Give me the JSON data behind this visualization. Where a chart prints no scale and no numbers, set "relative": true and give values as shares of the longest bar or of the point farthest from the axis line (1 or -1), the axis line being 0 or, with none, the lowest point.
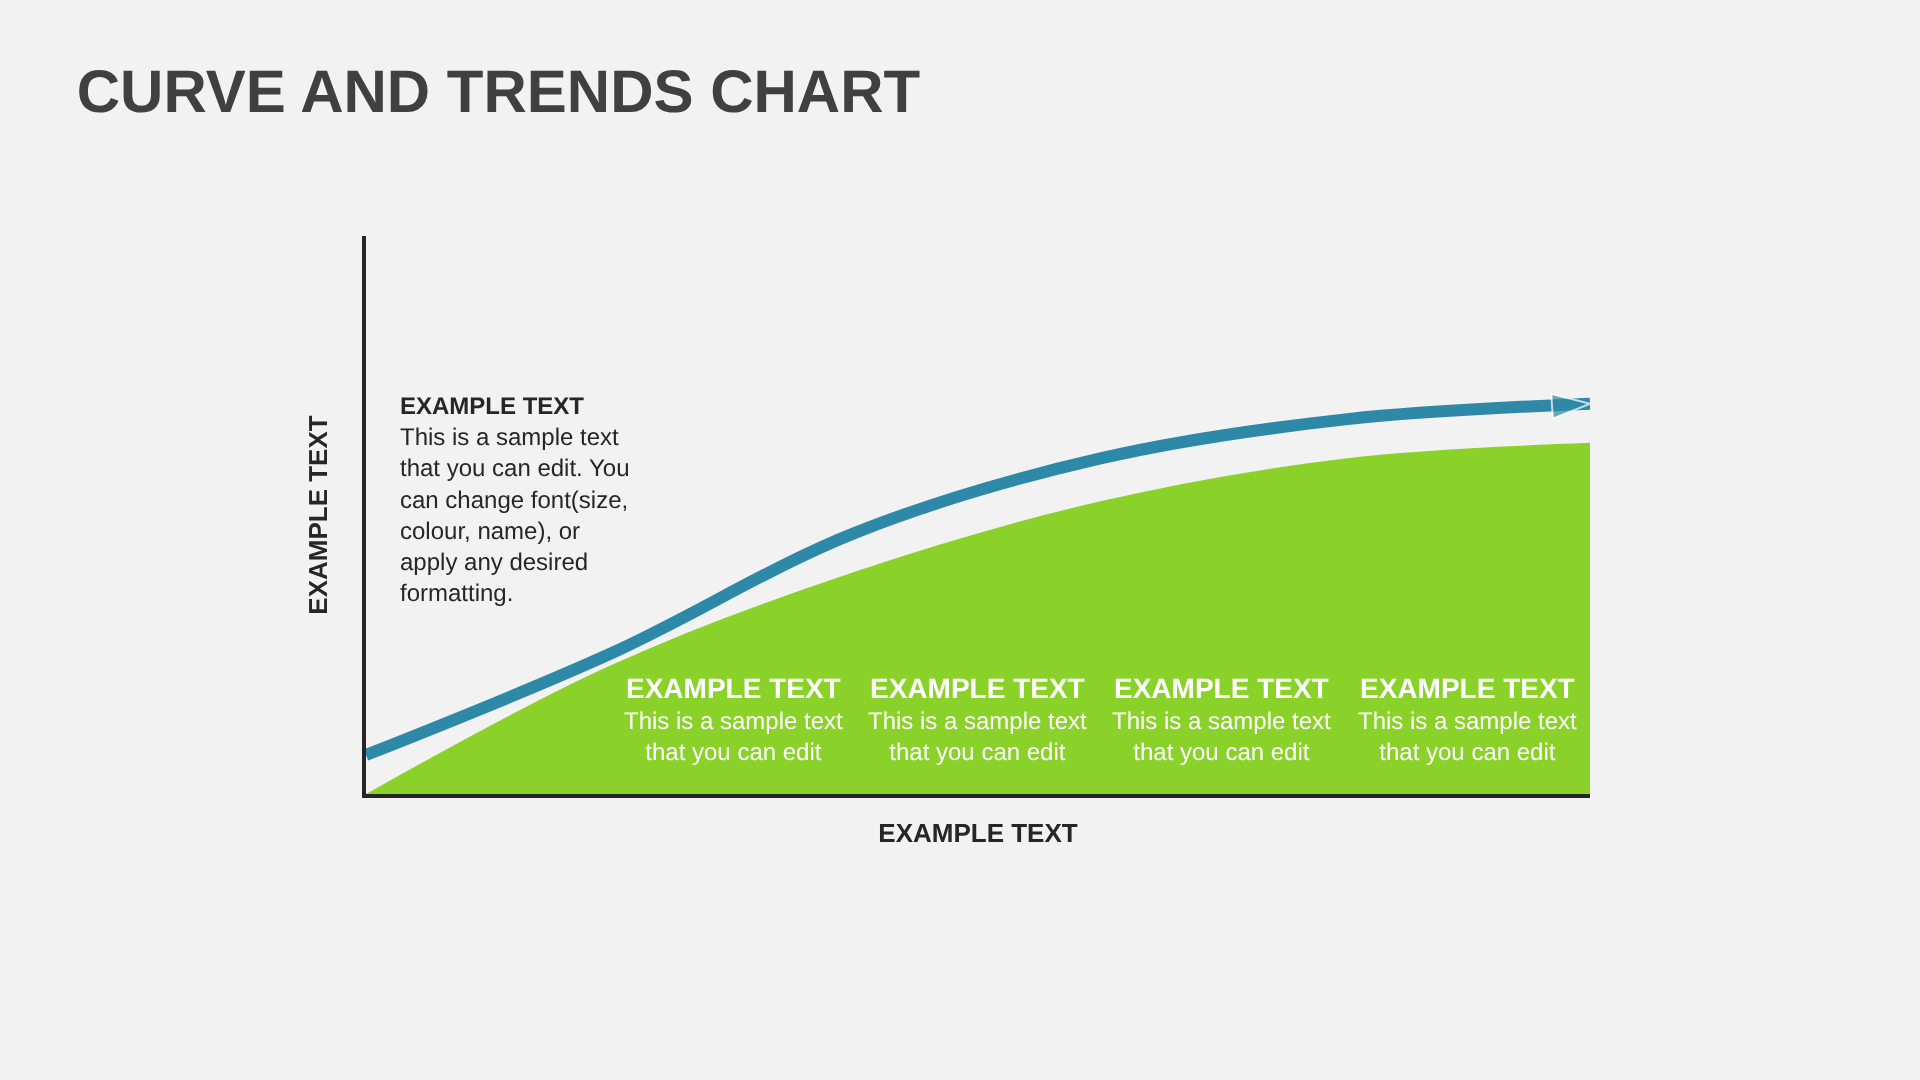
{
  "chart_data": {
    "type": "area",
    "title": "CURVE AND TRENDS CHART",
    "xlabel": "EXAMPLE TEXT",
    "ylabel": "EXAMPLE TEXT",
    "relative": true,
    "legend": false,
    "grid": false,
    "categories": [
      null,
      null,
      null,
      null,
      null,
      null
    ],
    "series": [
      {
        "color": "#8ad22a",
        "values": [
          0,
          0.33,
          0.57,
          0.75,
          0.86,
          0.9
        ]
      },
      {
        "type": "line",
        "color": "#2e88a8",
        "values": [
          0.1,
          0.36,
          0.67,
          0.86,
          0.96,
          1.0
        ]
      }
    ],
    "annotations": [
      "EXAMPLE TEXT\nThis is a sample text\nthat you can edit. You\ncan change font(size,\ncolour, name), or\napply any desired\nformatting.",
      "EXAMPLE TEXT\nThis is a sample text\nthat you can edit",
      "EXAMPLE TEXT\nThis is a sample text\nthat you can edit",
      "EXAMPLE TEXT\nThis is a sample text\nthat you can edit",
      "EXAMPLE TEXT\nThis is a sample text\nthat you can edit"
    ]
  }
}
